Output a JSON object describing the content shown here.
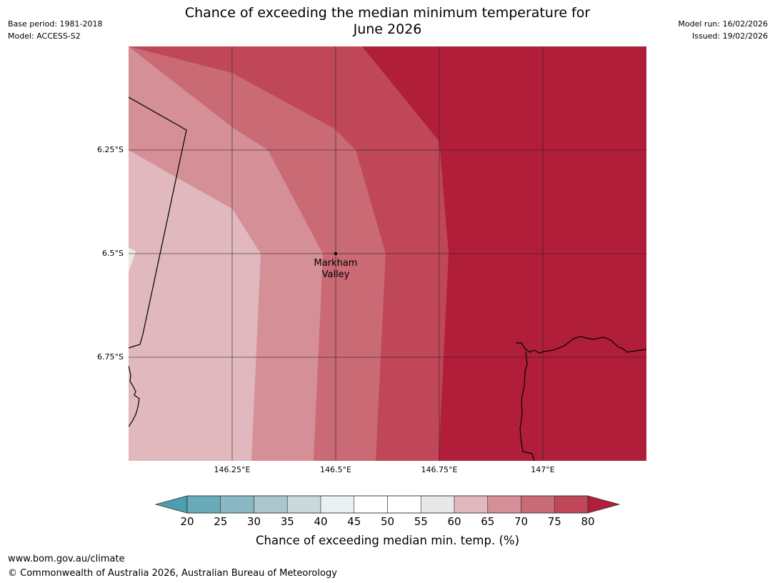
{
  "header": {
    "title_line1": "Chance of exceeding the median minimum temperature for",
    "title_line2": "June 2026",
    "base_period": "Base period: 1981-2018",
    "model": "Model: ACCESS-S2",
    "model_run": "Model run: 16/02/2026",
    "issued": "Issued: 19/02/2026"
  },
  "map": {
    "lat_labels": [
      "6.25°S",
      "6.5°S",
      "6.75°S"
    ],
    "lon_labels": [
      "146.25°E",
      "146.5°E",
      "146.75°E",
      "147°E"
    ],
    "place": {
      "name_line1": "Markham",
      "name_line2": "Valley",
      "lat": -6.5,
      "lon": 146.5
    },
    "extent": {
      "lon_min": 146.0,
      "lon_max": 147.25,
      "lat_min": -7.0,
      "lat_max": -6.0
    }
  },
  "legend": {
    "title": "Chance of exceeding median min. temp. (%)",
    "ticks": [
      "20",
      "25",
      "30",
      "35",
      "40",
      "45",
      "50",
      "55",
      "60",
      "65",
      "70",
      "75",
      "80"
    ],
    "colors": {
      "below_20": "#4a9fb0",
      "b20_25": "#6aabba",
      "b25_30": "#8ab8c5",
      "b30_35": "#a9c7cd",
      "b35_40": "#c9dadd",
      "b40_45": "#e9f1f3",
      "b45_50": "#ffffff",
      "b50_55": "#ffffff",
      "b55_60": "#e8e8e8",
      "b60_65": "#e0b8bd",
      "b65_70": "#d58f96",
      "b70_75": "#c96a75",
      "b75_80": "#bf4758",
      "above_80": "#b01e3a"
    }
  },
  "footer": {
    "url": "www.bom.gov.au/climate",
    "copyright": "© Commonwealth of Australia 2026, Australian Bureau of Meteorology"
  }
}
